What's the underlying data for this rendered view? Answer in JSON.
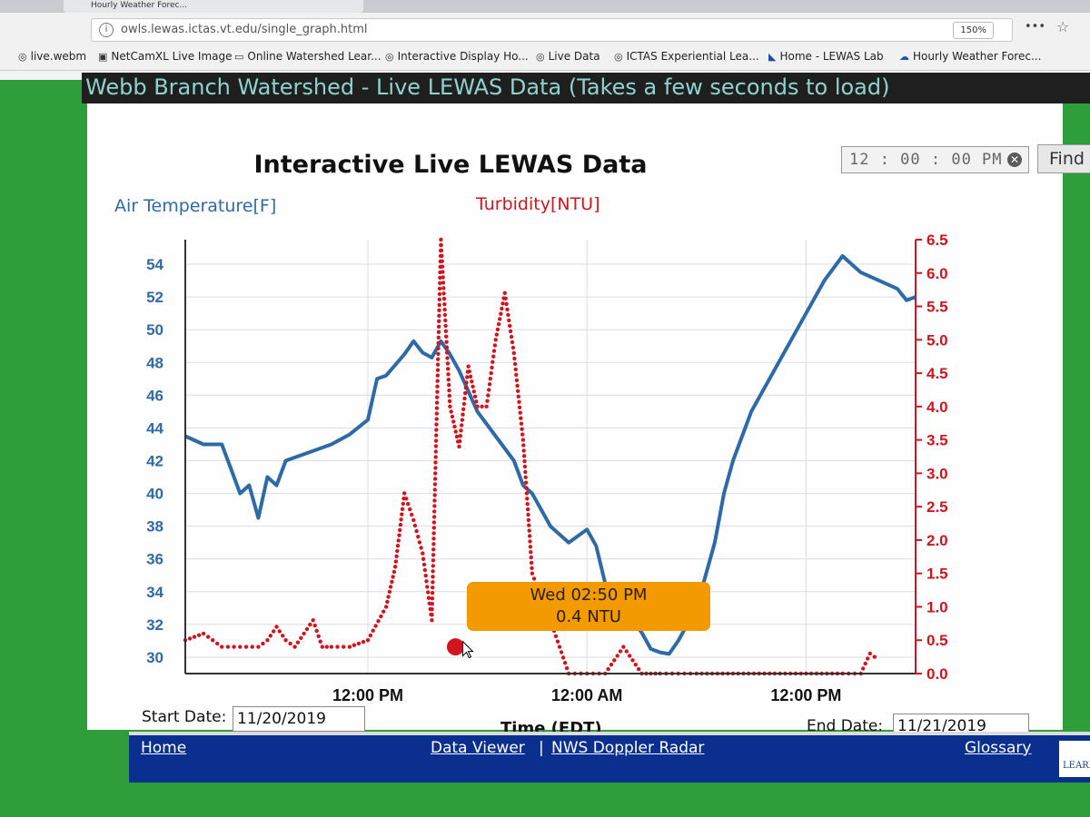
{
  "browser": {
    "tab_title": "Hourly Weather Forec...",
    "url": "owls.lewas.ictas.vt.edu/single_graph.html",
    "zoom": "150%",
    "more_label": "•••",
    "bookmarks": [
      {
        "label": "live.webm",
        "icon": "globe-icon"
      },
      {
        "label": "NetCamXL Live Image",
        "icon": "camera-icon"
      },
      {
        "label": "Online Watershed Lear...",
        "icon": "page-icon"
      },
      {
        "label": "Interactive Display Ho...",
        "icon": "globe-icon"
      },
      {
        "label": "Live Data",
        "icon": "globe-icon"
      },
      {
        "label": "ICTAS Experiential Lea...",
        "icon": "globe-icon"
      },
      {
        "label": "Home - LEWAS Lab",
        "icon": "lewas-icon"
      },
      {
        "label": "Hourly Weather Forec...",
        "icon": "weather-icon"
      }
    ]
  },
  "page": {
    "header_title": "Webb Branch Watershed - Live LEWAS Data (Takes a few seconds to load)",
    "graph_title": "Interactive Live LEWAS Data",
    "time_value": "12 : 00 : 00  PM",
    "find_label": "Find",
    "start_label": "Start Date:",
    "start_value": "11/20/2019",
    "end_label": "End Date:",
    "end_value": "11/21/2019"
  },
  "tooltip": {
    "line1": "Wed 02:50 PM",
    "line2": "0.4 NTU"
  },
  "footer": {
    "home": "Home",
    "data_viewer": "Data Viewer",
    "separator": "|",
    "nws": "NWS Doppler Radar",
    "glossary": "Glossary",
    "logo_text": "LEARN"
  },
  "colors": {
    "temperature": "#2e6aa7",
    "turbidity": "#d2141e",
    "tooltip": "#f29a00",
    "header_text": "#8fd3cf",
    "footer": "#0a2f8f"
  },
  "chart_data": {
    "type": "line",
    "title": "Interactive Live LEWAS Data",
    "xlabel": "Time (EDT)",
    "x_ticks": [
      "12:00 PM",
      "12:00 AM",
      "12:00 PM"
    ],
    "xlim_hours": [
      0,
      40
    ],
    "y_left": {
      "label": "Air Temperature[F]",
      "ticks": [
        30,
        32,
        34,
        36,
        38,
        40,
        42,
        44,
        46,
        48,
        50,
        52,
        54
      ],
      "range": [
        29,
        55.5
      ]
    },
    "y_right": {
      "label": "Turbidity[NTU]",
      "ticks": [
        0.0,
        0.5,
        1.0,
        1.5,
        2.0,
        2.5,
        3.0,
        3.5,
        4.0,
        4.5,
        5.0,
        5.5,
        6.0,
        6.5
      ],
      "range": [
        0,
        6.5
      ]
    },
    "grid": true,
    "series": [
      {
        "name": "Air Temperature[F]",
        "axis": "left",
        "style": "line",
        "x": [
          0,
          1,
          2,
          2.5,
          3,
          3.5,
          4,
          4.5,
          5,
          5.5,
          6,
          7,
          8,
          9,
          10,
          10.5,
          11,
          12,
          12.5,
          13,
          13.5,
          14,
          14.5,
          15,
          16,
          17,
          18,
          18.5,
          19,
          20,
          21,
          22,
          22.5,
          23,
          24,
          25,
          25.5,
          26,
          26.5,
          27,
          28,
          29,
          29.5,
          30,
          31,
          32,
          33,
          34,
          35,
          36,
          36.5,
          37,
          38,
          39,
          39.5,
          40
        ],
        "y": [
          43.5,
          43,
          43,
          41.5,
          40,
          40.5,
          38.5,
          41,
          40.5,
          42,
          42.2,
          42.6,
          43,
          43.6,
          44.5,
          47,
          47.2,
          48.5,
          49.3,
          48.6,
          48.3,
          49.3,
          48.5,
          47.5,
          45,
          43.5,
          42,
          40.5,
          40,
          38,
          37,
          37.8,
          36.8,
          34.5,
          33,
          31.5,
          30.5,
          30.3,
          30.2,
          31,
          33,
          37,
          40,
          42,
          45,
          47,
          49,
          51,
          53,
          54.5,
          54,
          53.5,
          53,
          52.5,
          51.8,
          52
        ]
      },
      {
        "name": "Turbidity[NTU]",
        "axis": "right",
        "style": "dots",
        "x": [
          0,
          1,
          1.5,
          2,
          3,
          4,
          4.5,
          5,
          5.5,
          6,
          7,
          7.5,
          8,
          9,
          10,
          11,
          11.5,
          12,
          12.5,
          13,
          13.5,
          14,
          14.5,
          15,
          15.5,
          16,
          16.5,
          17,
          17.5,
          18,
          18.5,
          19,
          20,
          20.5,
          21,
          22,
          23,
          24,
          25,
          25.5,
          26,
          27,
          28,
          30,
          32,
          34,
          36,
          37,
          37.5,
          38
        ],
        "y": [
          0.5,
          0.6,
          0.5,
          0.4,
          0.4,
          0.4,
          0.5,
          0.7,
          0.5,
          0.4,
          0.8,
          0.4,
          0.4,
          0.4,
          0.5,
          1.0,
          1.6,
          2.7,
          2.3,
          1.8,
          0.8,
          6.5,
          4.0,
          3.4,
          4.6,
          4.0,
          4.0,
          5.0,
          5.7,
          4.8,
          3.5,
          1.5,
          0.8,
          0.4,
          0.0,
          0.0,
          0.0,
          0.4,
          0.0,
          0.0,
          0.0,
          0.0,
          0.0,
          0.0,
          0.0,
          0.0,
          0.0,
          0.0,
          0.3,
          0.2
        ]
      }
    ],
    "highlight_point": {
      "series": "Turbidity[NTU]",
      "x": 14.8,
      "y": 0.4
    }
  }
}
